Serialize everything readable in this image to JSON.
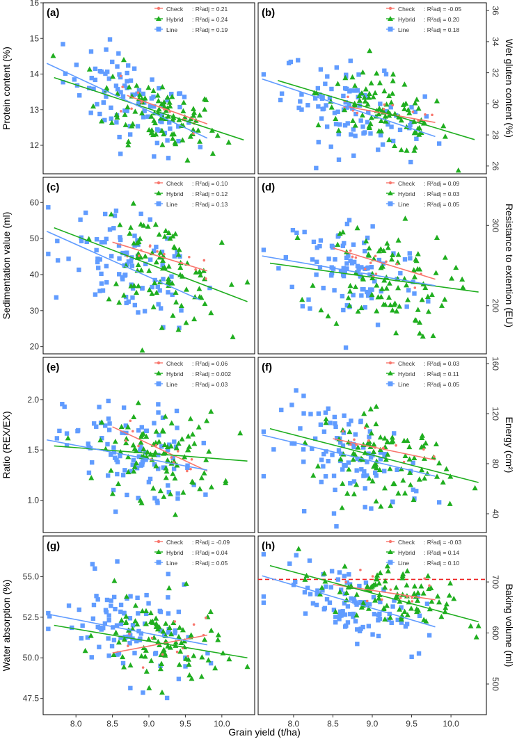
{
  "figure": {
    "xlabel": "Grain yield (t/ha)",
    "x_ticks": [
      "8.0",
      "8.5",
      "9.0",
      "9.5",
      "10.0"
    ],
    "legend_names": [
      "Check",
      "Hybrid",
      "Line"
    ],
    "colors": {
      "Check": "#f8766d",
      "Hybrid": "#1fae1f",
      "Line": "#619cff"
    }
  },
  "chart_data": [
    {
      "type": "scatter",
      "panel": "(a)",
      "ylabel": "Protein content (%)",
      "yaxis": "left",
      "ylim": [
        11.2,
        16.0
      ],
      "y_ticks": [
        "12",
        "13",
        "14",
        "15",
        "16"
      ],
      "xlim": [
        7.55,
        10.45
      ],
      "r2": [
        "R²adj = 0.21",
        "R²adj = 0.24",
        "R²adj = 0.19"
      ],
      "fits": [
        {
          "series": "Check",
          "x": [
            8.7,
            9.8
          ],
          "y": [
            13.4,
            12.6
          ]
        },
        {
          "series": "Hybrid",
          "x": [
            7.7,
            10.3
          ],
          "y": [
            13.9,
            12.15
          ]
        },
        {
          "series": "Line",
          "x": [
            7.6,
            9.8
          ],
          "y": [
            14.3,
            12.2
          ]
        }
      ],
      "cloud": {
        "line_mean": 13.1,
        "line_sd": 0.8,
        "hybrid_mean": 12.9,
        "hybrid_sd": 0.7
      }
    },
    {
      "type": "scatter",
      "panel": "(b)",
      "ylabel": "Wet gluten content (%)",
      "yaxis": "right",
      "ylim": [
        25.5,
        36.5
      ],
      "y_ticks": [
        "26",
        "28",
        "30",
        "32",
        "34",
        "36"
      ],
      "xlim": [
        7.55,
        10.45
      ],
      "r2": [
        "R²adj = -0.05",
        "R²adj = 0.20",
        "R²adj = 0.18"
      ],
      "fits": [
        {
          "series": "Check",
          "x": [
            8.7,
            9.8
          ],
          "y": [
            29.8,
            28.8
          ]
        },
        {
          "series": "Hybrid",
          "x": [
            7.8,
            10.3
          ],
          "y": [
            31.5,
            27.7
          ]
        },
        {
          "series": "Line",
          "x": [
            7.6,
            9.8
          ],
          "y": [
            31.6,
            27.9
          ]
        }
      ],
      "cloud": {
        "line_mean": 29.5,
        "line_sd": 1.8,
        "hybrid_mean": 29.5,
        "hybrid_sd": 1.5
      }
    },
    {
      "type": "scatter",
      "panel": "(c)",
      "ylabel": "Sedimentation value (ml)",
      "yaxis": "left",
      "ylim": [
        18,
        67
      ],
      "y_ticks": [
        "20",
        "30",
        "40",
        "50",
        "60"
      ],
      "xlim": [
        7.55,
        10.45
      ],
      "r2": [
        "R²adj = 0.10",
        "R²adj = 0.12",
        "R²adj = 0.13"
      ],
      "fits": [
        {
          "series": "Check",
          "x": [
            8.5,
            9.8
          ],
          "y": [
            49,
            41
          ]
        },
        {
          "series": "Hybrid",
          "x": [
            7.7,
            10.35
          ],
          "y": [
            53,
            32.5
          ]
        },
        {
          "series": "Line",
          "x": [
            7.6,
            9.7
          ],
          "y": [
            52,
            33
          ]
        }
      ],
      "cloud": {
        "line_mean": 43,
        "line_sd": 9,
        "hybrid_mean": 43,
        "hybrid_sd": 9
      }
    },
    {
      "type": "scatter",
      "panel": "(d)",
      "ylabel": "Resistance to extention (EU)",
      "yaxis": "right",
      "ylim": [
        140,
        360
      ],
      "y_ticks": [
        "200",
        "300"
      ],
      "xlim": [
        7.55,
        10.45
      ],
      "r2": [
        "R²adj = 0.09",
        "R²adj = 0.03",
        "R²adj = 0.05"
      ],
      "fits": [
        {
          "series": "Check",
          "x": [
            8.5,
            9.8
          ],
          "y": [
            272,
            233
          ]
        },
        {
          "series": "Hybrid",
          "x": [
            7.7,
            10.35
          ],
          "y": [
            253,
            217
          ]
        },
        {
          "series": "Line",
          "x": [
            7.6,
            9.8
          ],
          "y": [
            262,
            225
          ]
        }
      ],
      "cloud": {
        "line_mean": 240,
        "line_sd": 45,
        "hybrid_mean": 240,
        "hybrid_sd": 45
      }
    },
    {
      "type": "scatter",
      "panel": "(e)",
      "ylabel": "Ratio (REX/EX)",
      "yaxis": "left",
      "ylim": [
        0.68,
        2.42
      ],
      "y_ticks": [
        "1.0",
        "1.5",
        "2.0"
      ],
      "xlim": [
        7.55,
        10.45
      ],
      "r2": [
        "R²adj = 0.06",
        "R²adj = 0.002",
        "R²adj = 0.03"
      ],
      "fits": [
        {
          "series": "Check",
          "x": [
            8.5,
            9.8
          ],
          "y": [
            1.73,
            1.29
          ]
        },
        {
          "series": "Hybrid",
          "x": [
            7.7,
            10.35
          ],
          "y": [
            1.54,
            1.39
          ]
        },
        {
          "series": "Line",
          "x": [
            7.6,
            9.8
          ],
          "y": [
            1.6,
            1.3
          ]
        }
      ],
      "cloud": {
        "line_mean": 1.45,
        "line_sd": 0.35,
        "hybrid_mean": 1.45,
        "hybrid_sd": 0.3
      }
    },
    {
      "type": "scatter",
      "panel": "(f)",
      "ylabel": "Energy (cm²)",
      "yaxis": "right",
      "ylim": [
        25,
        165
      ],
      "y_ticks": [
        "40",
        "80",
        "120",
        "160"
      ],
      "xlim": [
        7.55,
        10.45
      ],
      "r2": [
        "R²adj = 0.03",
        "R²adj = 0.11",
        "R²adj = 0.05"
      ],
      "fits": [
        {
          "series": "Check",
          "x": [
            8.5,
            9.8
          ],
          "y": [
            100,
            83
          ]
        },
        {
          "series": "Hybrid",
          "x": [
            7.7,
            10.35
          ],
          "y": [
            108,
            65
          ]
        },
        {
          "series": "Line",
          "x": [
            7.6,
            9.8
          ],
          "y": [
            103,
            70
          ]
        }
      ],
      "cloud": {
        "line_mean": 85,
        "line_sd": 25,
        "hybrid_mean": 85,
        "hybrid_sd": 22
      }
    },
    {
      "type": "scatter",
      "panel": "(g)",
      "ylabel": "Water absorption (%)",
      "yaxis": "left",
      "ylim": [
        46.5,
        57.5
      ],
      "y_ticks": [
        "47.5",
        "50.0",
        "52.5",
        "55.0"
      ],
      "xlim": [
        7.55,
        10.45
      ],
      "r2": [
        "R²adj = -0.09",
        "R²adj = 0.04",
        "R²adj = 0.05"
      ],
      "fits": [
        {
          "series": "Check",
          "x": [
            8.5,
            9.8
          ],
          "y": [
            50.3,
            51.4
          ]
        },
        {
          "series": "Hybrid",
          "x": [
            7.7,
            10.35
          ],
          "y": [
            52.0,
            50.0
          ]
        },
        {
          "series": "Line",
          "x": [
            7.6,
            9.8
          ],
          "y": [
            52.7,
            50.8
          ]
        }
      ],
      "cloud": {
        "line_mean": 51.5,
        "line_sd": 2.0,
        "hybrid_mean": 51.0,
        "hybrid_sd": 1.8
      }
    },
    {
      "type": "scatter",
      "panel": "(h)",
      "ylabel": "Baking volume (ml)",
      "yaxis": "right",
      "ylim": [
        440,
        790
      ],
      "y_ticks": [
        "500",
        "600",
        "700"
      ],
      "xlim": [
        7.55,
        10.45
      ],
      "r2": [
        "R²adj = -0.03",
        "R²adj = 0.14",
        "R²adj = 0.10"
      ],
      "hline": 705,
      "fits": [
        {
          "series": "Check",
          "x": [
            8.5,
            9.8
          ],
          "y": [
            695,
            665
          ]
        },
        {
          "series": "Hybrid",
          "x": [
            7.7,
            10.35
          ],
          "y": [
            732,
            622
          ]
        },
        {
          "series": "Line",
          "x": [
            7.6,
            9.8
          ],
          "y": [
            712,
            612
          ]
        }
      ],
      "cloud": {
        "line_mean": 665,
        "line_sd": 45,
        "hybrid_mean": 675,
        "hybrid_sd": 40
      }
    }
  ]
}
